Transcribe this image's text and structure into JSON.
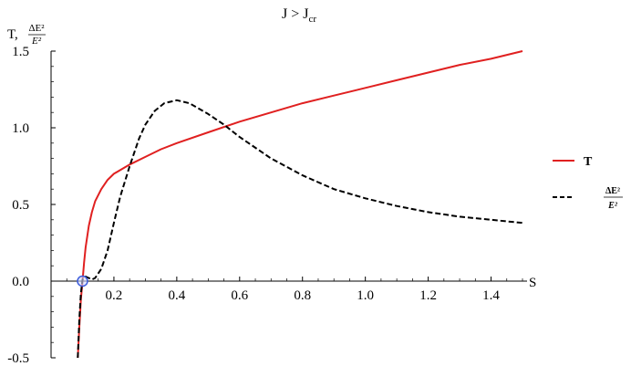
{
  "chart_data": {
    "type": "line",
    "title": "J > J",
    "title_subscript": "cr",
    "xlabel": "S",
    "ylabel_prefix": "T,",
    "ylabel_fraction_num": "ΔE²",
    "ylabel_fraction_den": "E²",
    "xlim": [
      0.0,
      1.5
    ],
    "ylim": [
      -0.5,
      1.5
    ],
    "x_ticks": [
      0.2,
      0.4,
      0.6,
      0.8,
      1.0,
      1.2,
      1.4
    ],
    "x_tick_labels": [
      "0.2",
      "0.4",
      "0.6",
      "0.8",
      "1.0",
      "1.2",
      "1.4"
    ],
    "y_ticks": [
      -0.5,
      0.0,
      0.5,
      1.0,
      1.5
    ],
    "y_tick_labels": [
      "-0.5",
      "0.0",
      "0.5",
      "1.0",
      "1.5"
    ],
    "grid": false,
    "legend_position": "right",
    "marker_point": {
      "x": 0.1,
      "y": 0.0
    },
    "series": [
      {
        "name": "T",
        "color": "#e02020",
        "style": "solid",
        "x": [
          0.085,
          0.09,
          0.095,
          0.1,
          0.105,
          0.11,
          0.12,
          0.13,
          0.14,
          0.16,
          0.18,
          0.2,
          0.25,
          0.3,
          0.35,
          0.4,
          0.5,
          0.6,
          0.7,
          0.8,
          0.9,
          1.0,
          1.1,
          1.2,
          1.3,
          1.4,
          1.5
        ],
        "y": [
          -0.5,
          -0.3,
          -0.12,
          0.0,
          0.12,
          0.22,
          0.36,
          0.45,
          0.52,
          0.6,
          0.66,
          0.7,
          0.76,
          0.81,
          0.86,
          0.9,
          0.97,
          1.04,
          1.1,
          1.16,
          1.21,
          1.26,
          1.31,
          1.36,
          1.41,
          1.45,
          1.5
        ]
      },
      {
        "name": "ΔE²/E²",
        "color": "#000000",
        "style": "dashed",
        "x": [
          0.085,
          0.09,
          0.095,
          0.1,
          0.11,
          0.12,
          0.13,
          0.14,
          0.16,
          0.18,
          0.2,
          0.22,
          0.25,
          0.28,
          0.3,
          0.33,
          0.36,
          0.4,
          0.44,
          0.5,
          0.55,
          0.6,
          0.7,
          0.8,
          0.9,
          1.0,
          1.1,
          1.2,
          1.3,
          1.4,
          1.5
        ],
        "y": [
          -0.5,
          -0.25,
          -0.08,
          0.01,
          0.03,
          0.02,
          0.01,
          0.02,
          0.08,
          0.2,
          0.38,
          0.55,
          0.75,
          0.93,
          1.02,
          1.11,
          1.16,
          1.18,
          1.16,
          1.09,
          1.02,
          0.94,
          0.8,
          0.69,
          0.6,
          0.54,
          0.49,
          0.45,
          0.42,
          0.4,
          0.38
        ]
      }
    ]
  }
}
